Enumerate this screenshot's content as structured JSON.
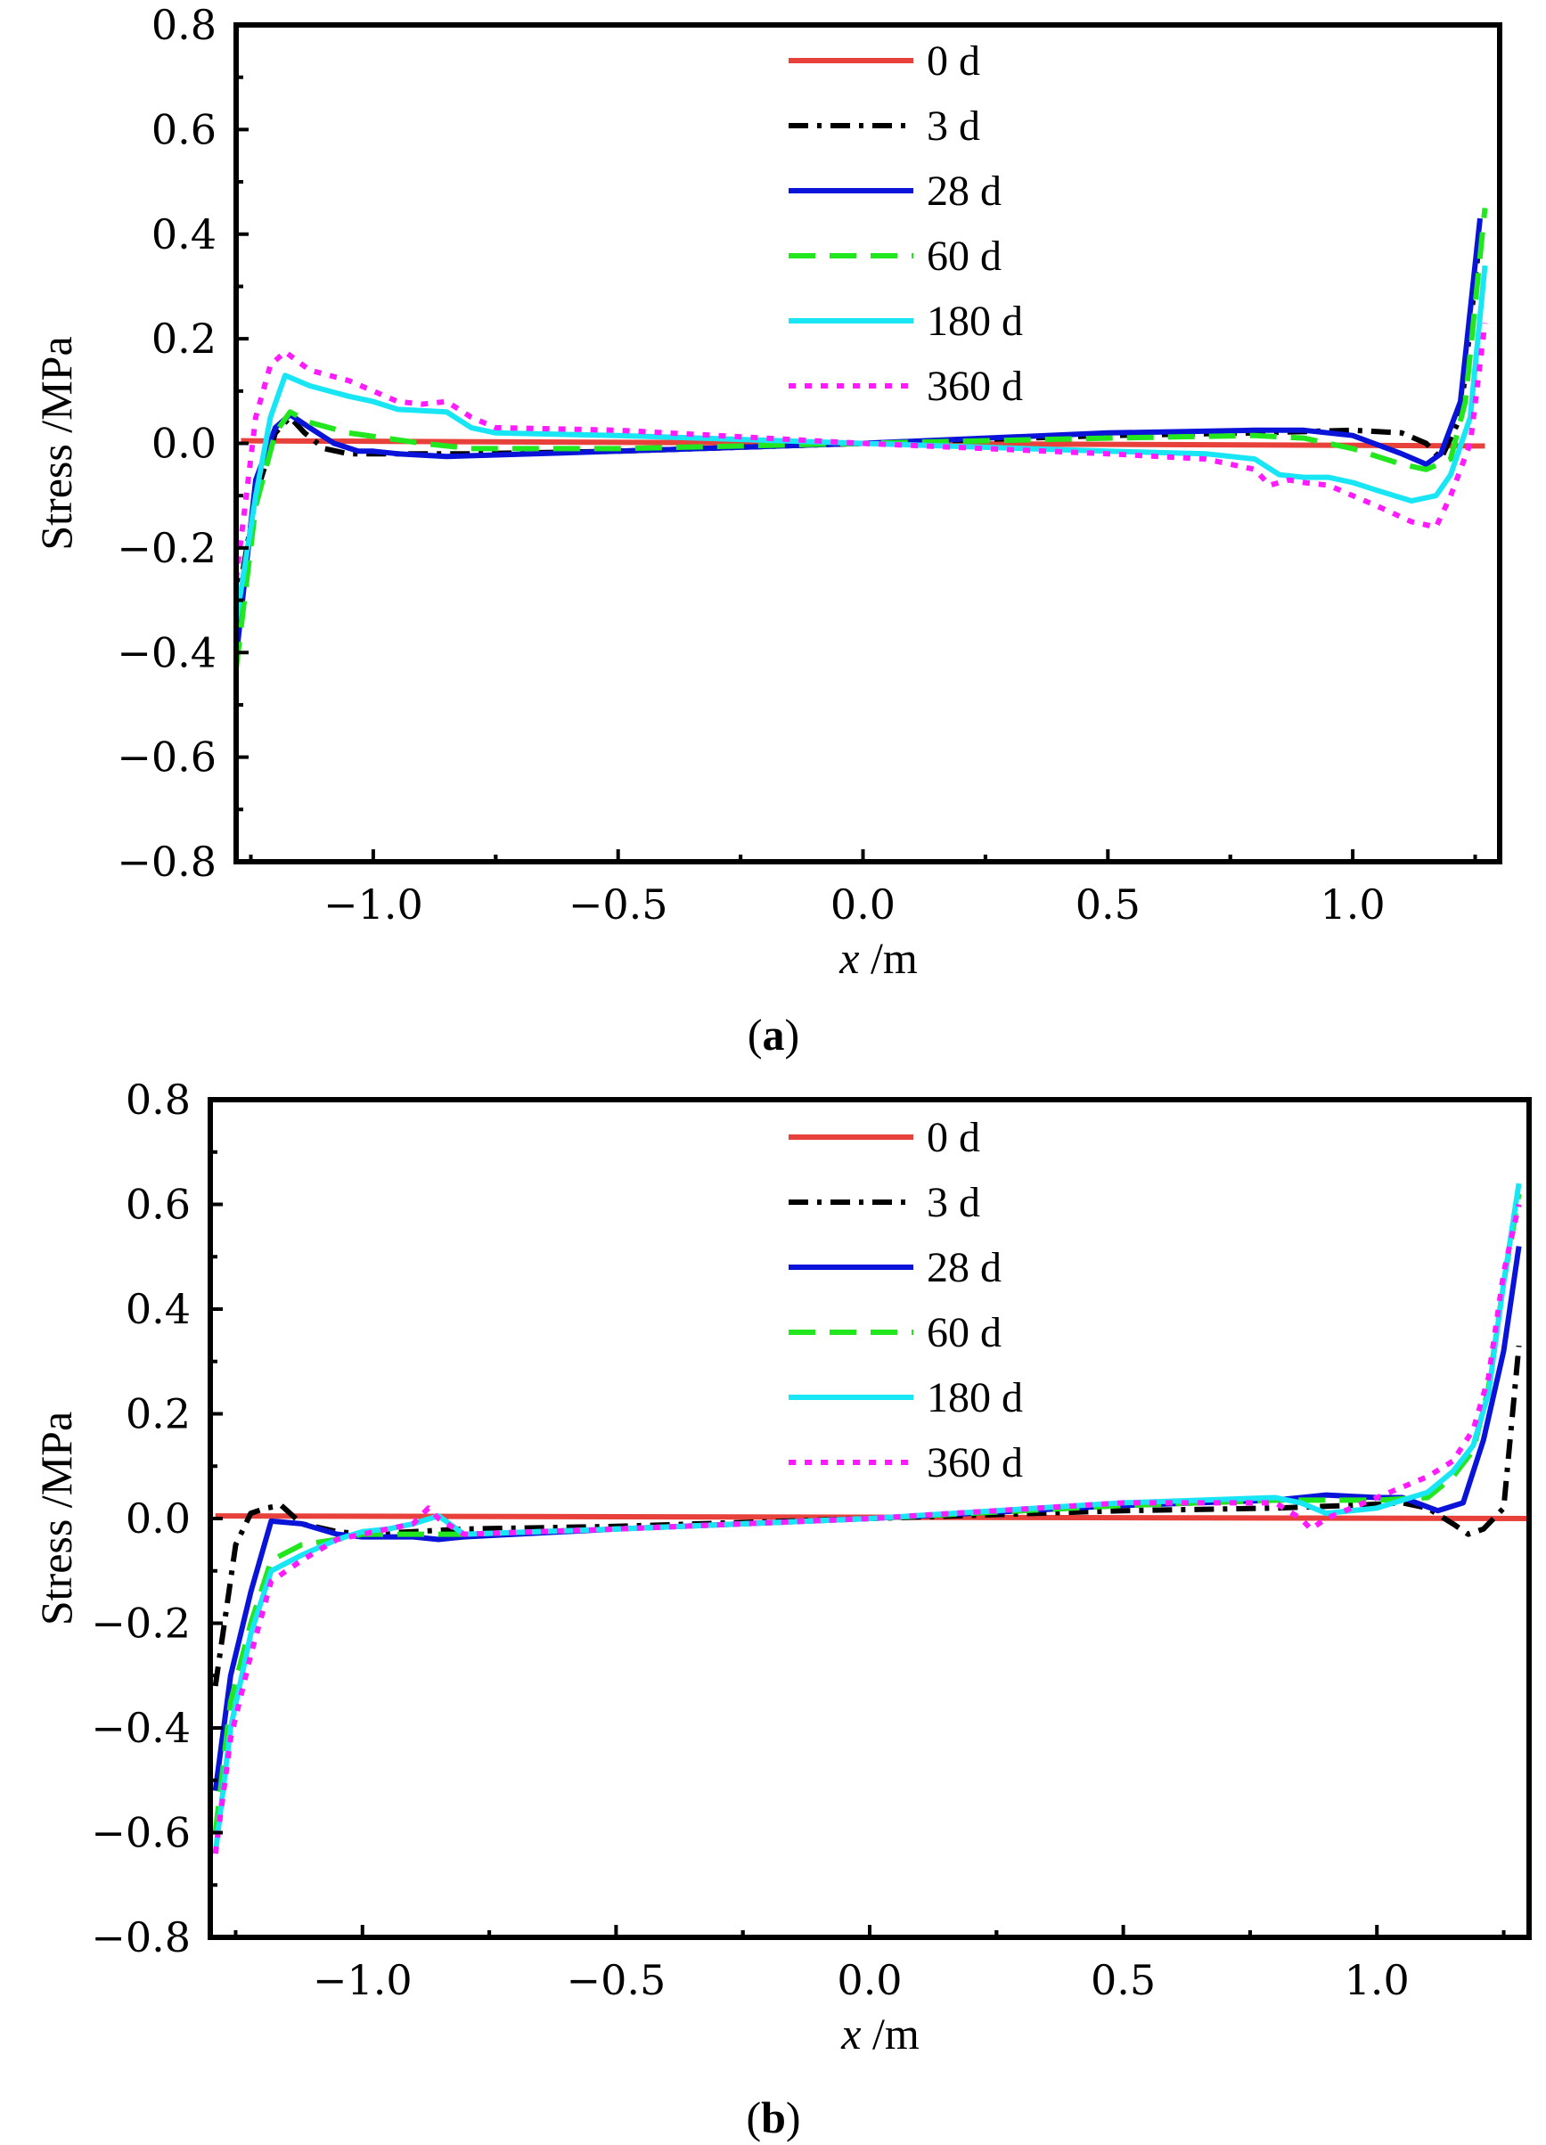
{
  "chart_data": [
    {
      "type": "line",
      "panel": "a",
      "caption": "(a)",
      "caption_parts": [
        "(",
        "a",
        ")"
      ],
      "xlabel": "x /m",
      "xlabel_parts": [
        "x",
        " /m"
      ],
      "ylabel": "Stress /MPa",
      "xlim": [
        -1.28,
        1.3
      ],
      "ylim": [
        -0.8,
        0.8
      ],
      "xticks": [
        -1.0,
        -0.5,
        0.0,
        0.5,
        1.0
      ],
      "xtick_labels": [
        "−1.0",
        "−0.5",
        "0.0",
        "0.5",
        "1.0"
      ],
      "yticks": [
        -0.8,
        -0.6,
        -0.4,
        -0.2,
        0.0,
        0.2,
        0.4,
        0.6,
        0.8
      ],
      "ytick_labels": [
        "−0.8",
        "−0.6",
        "−0.4",
        "−0.2",
        "0.0",
        "0.2",
        "0.4",
        "0.6",
        "0.8"
      ],
      "legend_position": "top-center",
      "series": [
        {
          "name": "0 d",
          "color": "#e8413c",
          "dash": "solid",
          "x": [
            -1.27,
            1.27
          ],
          "y": [
            0.005,
            -0.005
          ]
        },
        {
          "name": "3 d",
          "color": "#000000",
          "dash": "dashdot",
          "x": [
            -1.28,
            -1.24,
            -1.2,
            -1.17,
            -1.14,
            -1.1,
            -1.05,
            -1.0,
            -0.9,
            -0.8,
            -0.5,
            0.0,
            0.5,
            0.8,
            1.0,
            1.1,
            1.15,
            1.18,
            1.22,
            1.26
          ],
          "y": [
            -0.32,
            -0.1,
            0.02,
            0.05,
            0.02,
            -0.01,
            -0.02,
            -0.02,
            -0.02,
            -0.02,
            -0.015,
            0.0,
            0.015,
            0.02,
            0.025,
            0.02,
            0.0,
            -0.03,
            0.05,
            0.4
          ]
        },
        {
          "name": "28 d",
          "color": "#0a14d8",
          "dash": "solid",
          "x": [
            -1.28,
            -1.24,
            -1.2,
            -1.17,
            -1.13,
            -1.08,
            -1.03,
            -1.0,
            -0.95,
            -0.85,
            -0.5,
            0.0,
            0.5,
            0.8,
            0.9,
            1.0,
            1.1,
            1.15,
            1.18,
            1.22,
            1.26
          ],
          "y": [
            -0.41,
            -0.07,
            0.03,
            0.055,
            0.03,
            0.0,
            -0.015,
            -0.015,
            -0.02,
            -0.025,
            -0.015,
            0.0,
            0.02,
            0.025,
            0.025,
            0.015,
            -0.02,
            -0.04,
            -0.02,
            0.08,
            0.43
          ]
        },
        {
          "name": "60 d",
          "color": "#22e61e",
          "dash": "dashed",
          "x": [
            -1.28,
            -1.24,
            -1.2,
            -1.17,
            -1.13,
            -1.05,
            -0.9,
            -0.8,
            -0.5,
            0.0,
            0.5,
            0.8,
            0.9,
            1.0,
            1.1,
            1.15,
            1.2,
            1.23,
            1.27
          ],
          "y": [
            -0.43,
            -0.12,
            0.02,
            0.06,
            0.04,
            0.02,
            0.0,
            -0.01,
            -0.01,
            0.0,
            0.01,
            0.015,
            0.01,
            -0.01,
            -0.04,
            -0.05,
            -0.03,
            0.08,
            0.45
          ]
        },
        {
          "name": "180 d",
          "color": "#19e6f5",
          "dash": "solid",
          "x": [
            -1.28,
            -1.24,
            -1.21,
            -1.18,
            -1.13,
            -1.05,
            -1.0,
            -0.95,
            -0.85,
            -0.8,
            -0.75,
            -0.5,
            0.0,
            0.5,
            0.7,
            0.8,
            0.85,
            0.9,
            0.95,
            1.0,
            1.05,
            1.12,
            1.17,
            1.2,
            1.24,
            1.27
          ],
          "y": [
            -0.34,
            -0.1,
            0.05,
            0.13,
            0.11,
            0.09,
            0.08,
            0.065,
            0.06,
            0.03,
            0.02,
            0.015,
            0.0,
            -0.015,
            -0.02,
            -0.03,
            -0.06,
            -0.065,
            -0.065,
            -0.075,
            -0.09,
            -0.11,
            -0.1,
            -0.06,
            0.05,
            0.34
          ]
        },
        {
          "name": "360 d",
          "color": "#ff1aff",
          "dash": "dotted",
          "x": [
            -1.28,
            -1.24,
            -1.21,
            -1.18,
            -1.13,
            -1.05,
            -1.0,
            -0.95,
            -0.9,
            -0.85,
            -0.8,
            -0.75,
            -0.5,
            0.0,
            0.5,
            0.7,
            0.8,
            0.83,
            0.87,
            0.9,
            0.95,
            1.0,
            1.05,
            1.12,
            1.17,
            1.2,
            1.24,
            1.27
          ],
          "y": [
            -0.26,
            0.05,
            0.15,
            0.175,
            0.14,
            0.12,
            0.1,
            0.08,
            0.075,
            0.08,
            0.05,
            0.03,
            0.025,
            0.0,
            -0.02,
            -0.03,
            -0.05,
            -0.08,
            -0.07,
            -0.075,
            -0.08,
            -0.1,
            -0.12,
            -0.15,
            -0.16,
            -0.1,
            0.0,
            0.23
          ]
        }
      ]
    },
    {
      "type": "line",
      "panel": "b",
      "caption": "(b)",
      "caption_parts": [
        "(",
        "b",
        ")"
      ],
      "xlabel": "x /m",
      "xlabel_parts": [
        "x",
        " /m"
      ],
      "ylabel": "Stress /MPa",
      "xlim": [
        -1.3,
        1.3
      ],
      "ylim": [
        -0.8,
        0.8
      ],
      "xticks": [
        -1.0,
        -0.5,
        0.0,
        0.5,
        1.0
      ],
      "xtick_labels": [
        "−1.0",
        "−0.5",
        "0.0",
        "0.5",
        "1.0"
      ],
      "yticks": [
        -0.8,
        -0.6,
        -0.4,
        -0.2,
        0.0,
        0.2,
        0.4,
        0.6,
        0.8
      ],
      "ytick_labels": [
        "−0.8",
        "−0.6",
        "−0.4",
        "−0.2",
        "0.0",
        "0.2",
        "0.4",
        "0.6",
        "0.8"
      ],
      "legend_position": "top-center",
      "series": [
        {
          "name": "0 d",
          "color": "#e8413c",
          "dash": "solid",
          "x": [
            -1.29,
            1.3
          ],
          "y": [
            0.005,
            0.0
          ]
        },
        {
          "name": "3 d",
          "color": "#000000",
          "dash": "dashdot",
          "x": [
            -1.29,
            -1.25,
            -1.22,
            -1.19,
            -1.16,
            -1.12,
            -1.05,
            -1.0,
            -0.9,
            -0.8,
            -0.5,
            0.0,
            0.5,
            0.8,
            0.95,
            1.05,
            1.1,
            1.15,
            1.18,
            1.21,
            1.25,
            1.28
          ],
          "y": [
            -0.32,
            -0.05,
            0.01,
            0.02,
            0.025,
            -0.01,
            -0.025,
            -0.03,
            -0.025,
            -0.02,
            -0.015,
            0.0,
            0.015,
            0.02,
            0.025,
            0.03,
            0.02,
            -0.01,
            -0.03,
            -0.02,
            0.02,
            0.33
          ]
        },
        {
          "name": "28 d",
          "color": "#0a14d8",
          "dash": "solid",
          "x": [
            -1.29,
            -1.26,
            -1.22,
            -1.18,
            -1.12,
            -1.05,
            -1.0,
            -0.9,
            -0.85,
            -0.8,
            -0.5,
            0.0,
            0.5,
            0.8,
            0.9,
            1.0,
            1.05,
            1.12,
            1.17,
            1.21,
            1.25,
            1.28
          ],
          "y": [
            -0.52,
            -0.3,
            -0.14,
            -0.005,
            -0.01,
            -0.03,
            -0.035,
            -0.035,
            -0.04,
            -0.035,
            -0.02,
            0.0,
            0.025,
            0.035,
            0.045,
            0.04,
            0.04,
            0.015,
            0.03,
            0.15,
            0.32,
            0.52
          ]
        },
        {
          "name": "60 d",
          "color": "#22e61e",
          "dash": "dashed",
          "x": [
            -1.29,
            -1.26,
            -1.22,
            -1.18,
            -1.12,
            -1.05,
            -1.0,
            -0.9,
            -0.8,
            -0.5,
            0.0,
            0.5,
            0.8,
            0.9,
            1.0,
            1.1,
            1.15,
            1.19,
            1.22,
            1.25,
            1.28
          ],
          "y": [
            -0.6,
            -0.35,
            -0.2,
            -0.08,
            -0.05,
            -0.04,
            -0.03,
            -0.03,
            -0.03,
            -0.02,
            0.0,
            0.025,
            0.035,
            0.035,
            0.035,
            0.04,
            0.08,
            0.13,
            0.25,
            0.45,
            0.62
          ]
        },
        {
          "name": "180 d",
          "color": "#19e6f5",
          "dash": "solid",
          "x": [
            -1.29,
            -1.26,
            -1.22,
            -1.18,
            -1.12,
            -1.05,
            -1.0,
            -0.95,
            -0.9,
            -0.85,
            -0.8,
            -0.5,
            0.0,
            0.5,
            0.8,
            0.85,
            0.9,
            1.0,
            1.1,
            1.15,
            1.19,
            1.22,
            1.25,
            1.28
          ],
          "y": [
            -0.64,
            -0.4,
            -0.22,
            -0.1,
            -0.07,
            -0.04,
            -0.025,
            -0.02,
            -0.01,
            0.005,
            -0.03,
            -0.02,
            0.0,
            0.03,
            0.04,
            0.03,
            0.01,
            0.02,
            0.05,
            0.09,
            0.14,
            0.24,
            0.45,
            0.64
          ]
        },
        {
          "name": "360 d",
          "color": "#ff1aff",
          "dash": "dotted",
          "x": [
            -1.29,
            -1.26,
            -1.22,
            -1.18,
            -1.12,
            -1.05,
            -1.0,
            -0.9,
            -0.87,
            -0.85,
            -0.8,
            -0.5,
            0.0,
            0.5,
            0.8,
            0.85,
            0.87,
            0.9,
            1.0,
            1.1,
            1.15,
            1.19,
            1.22,
            1.25,
            1.28
          ],
          "y": [
            -0.64,
            -0.42,
            -0.26,
            -0.12,
            -0.08,
            -0.04,
            -0.03,
            -0.01,
            0.02,
            0.0,
            -0.03,
            -0.02,
            0.0,
            0.03,
            0.03,
            0.0,
            -0.02,
            0.0,
            0.04,
            0.08,
            0.11,
            0.17,
            0.27,
            0.47,
            0.6
          ]
        }
      ]
    }
  ]
}
